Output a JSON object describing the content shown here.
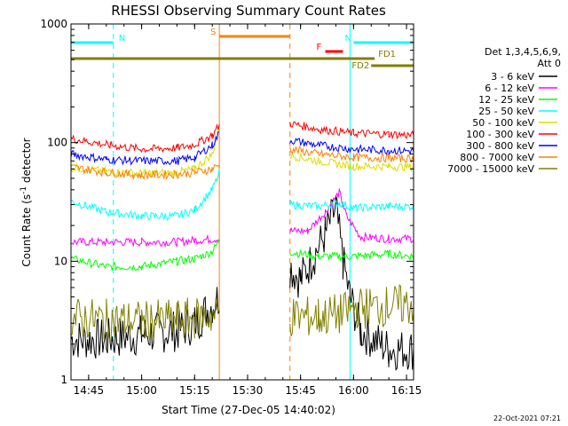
{
  "chart_data": {
    "type": "line",
    "title": "RHESSI Observing Summary Count Rates",
    "xlabel": "Start Time (27-Dec-05 14:40:02)",
    "ylabel_main": "Count Rate (s",
    "ylabel_exponent": "-1",
    "ylabel_end": " detector",
    "y_scale": "log",
    "ylim": [
      1,
      1000
    ],
    "xlim": [
      "14:40",
      "16:17"
    ],
    "x_ticks": [
      "14:45",
      "15:00",
      "15:15",
      "15:30",
      "15:45",
      "16:00",
      "16:15"
    ],
    "y_ticks": [
      "1",
      "10",
      "100",
      "1000"
    ],
    "detector_info": [
      "Det 1,3,4,5,6,9,",
      "Att 0"
    ],
    "timestamp": "22-Oct-2021 07:21",
    "legend_position": "right",
    "data_gap": [
      "15:22",
      "15:42"
    ],
    "series": [
      {
        "name": "3 - 6 keV",
        "color": "#000000",
        "points": [
          [
            "14:40",
            2.2
          ],
          [
            "14:50",
            2.2
          ],
          [
            "15:00",
            2.4
          ],
          [
            "15:10",
            2.6
          ],
          [
            "15:15",
            3.0
          ],
          [
            "15:22",
            5.0
          ],
          [
            "15:42",
            9.0
          ],
          [
            "15:45",
            7.0
          ],
          [
            "15:48",
            10.0
          ],
          [
            "15:52",
            17.0
          ],
          [
            "15:55",
            28.0
          ],
          [
            "15:57",
            10.0
          ],
          [
            "15:59",
            5.0
          ],
          [
            "16:02",
            2.6
          ],
          [
            "16:10",
            1.8
          ],
          [
            "16:17",
            1.8
          ]
        ]
      },
      {
        "name": "6 - 12 keV",
        "color": "#ff00ff",
        "points": [
          [
            "14:40",
            14.5
          ],
          [
            "14:50",
            14.5
          ],
          [
            "15:00",
            14.5
          ],
          [
            "15:10",
            14.5
          ],
          [
            "15:15",
            15.0
          ],
          [
            "15:22",
            15.5
          ],
          [
            "15:42",
            18.0
          ],
          [
            "15:47",
            18.0
          ],
          [
            "15:52",
            26.0
          ],
          [
            "15:56",
            38.0
          ],
          [
            "15:58",
            24.0
          ],
          [
            "16:02",
            16.0
          ],
          [
            "16:10",
            15.5
          ],
          [
            "16:17",
            15.5
          ]
        ]
      },
      {
        "name": "12 - 25 keV",
        "color": "#00ff00",
        "points": [
          [
            "14:40",
            10.5
          ],
          [
            "14:50",
            9.0
          ],
          [
            "15:00",
            9.0
          ],
          [
            "15:10",
            10.0
          ],
          [
            "15:15",
            10.5
          ],
          [
            "15:20",
            12.0
          ],
          [
            "15:22",
            15.0
          ],
          [
            "15:42",
            12.0
          ],
          [
            "15:50",
            11.0
          ],
          [
            "16:00",
            11.0
          ],
          [
            "16:10",
            11.5
          ],
          [
            "16:17",
            11.0
          ]
        ]
      },
      {
        "name": "25 - 50 keV",
        "color": "#00ffff",
        "points": [
          [
            "14:40",
            32.0
          ],
          [
            "14:50",
            26.0
          ],
          [
            "15:00",
            24.0
          ],
          [
            "15:10",
            24.0
          ],
          [
            "15:15",
            27.0
          ],
          [
            "15:20",
            40.0
          ],
          [
            "15:22",
            55.0
          ],
          [
            "15:42",
            30.0
          ],
          [
            "15:50",
            29.0
          ],
          [
            "15:56",
            31.0
          ],
          [
            "16:00",
            28.0
          ],
          [
            "16:10",
            29.0
          ],
          [
            "16:17",
            29.0
          ]
        ]
      },
      {
        "name": "50 - 100 keV",
        "color": "#dddd00",
        "points": [
          [
            "14:40",
            62.0
          ],
          [
            "14:50",
            57.0
          ],
          [
            "15:00",
            55.0
          ],
          [
            "15:10",
            56.0
          ],
          [
            "15:15",
            60.0
          ],
          [
            "15:20",
            80.0
          ],
          [
            "15:22",
            130.0
          ],
          [
            "15:42",
            78.0
          ],
          [
            "15:50",
            70.0
          ],
          [
            "16:00",
            63.0
          ],
          [
            "16:10",
            63.0
          ],
          [
            "16:17",
            62.0
          ]
        ]
      },
      {
        "name": "100 - 300 keV",
        "color": "#ff0000",
        "points": [
          [
            "14:40",
            108.0
          ],
          [
            "14:50",
            96.0
          ],
          [
            "15:00",
            88.0
          ],
          [
            "15:10",
            90.0
          ],
          [
            "15:15",
            96.0
          ],
          [
            "15:20",
            115.0
          ],
          [
            "15:22",
            140.0
          ],
          [
            "15:42",
            145.0
          ],
          [
            "15:50",
            130.0
          ],
          [
            "16:00",
            120.0
          ],
          [
            "16:10",
            118.0
          ],
          [
            "16:17",
            115.0
          ]
        ]
      },
      {
        "name": "300 - 800 keV",
        "color": "#0000ff",
        "points": [
          [
            "14:40",
            80.0
          ],
          [
            "14:50",
            72.0
          ],
          [
            "15:00",
            70.0
          ],
          [
            "15:10",
            70.0
          ],
          [
            "15:15",
            75.0
          ],
          [
            "15:20",
            95.0
          ],
          [
            "15:22",
            120.0
          ],
          [
            "15:42",
            105.0
          ],
          [
            "15:50",
            95.0
          ],
          [
            "16:00",
            88.0
          ],
          [
            "16:10",
            86.0
          ],
          [
            "16:17",
            85.0
          ]
        ]
      },
      {
        "name": "800 - 7000 keV",
        "color": "#ff8000",
        "points": [
          [
            "14:40",
            62.0
          ],
          [
            "14:50",
            56.0
          ],
          [
            "15:00",
            53.0
          ],
          [
            "15:10",
            54.0
          ],
          [
            "15:15",
            56.0
          ],
          [
            "15:20",
            60.0
          ],
          [
            "15:22",
            65.0
          ],
          [
            "15:42",
            88.0
          ],
          [
            "15:50",
            80.0
          ],
          [
            "16:00",
            75.0
          ],
          [
            "16:10",
            74.0
          ],
          [
            "16:17",
            73.0
          ]
        ]
      },
      {
        "name": "7000 - 15000 keV",
        "color": "#808000",
        "points": [
          [
            "14:40",
            3.3
          ],
          [
            "14:50",
            3.2
          ],
          [
            "15:00",
            3.1
          ],
          [
            "15:10",
            3.2
          ],
          [
            "15:15",
            3.3
          ],
          [
            "15:22",
            3.6
          ],
          [
            "15:42",
            3.4
          ],
          [
            "15:50",
            3.4
          ],
          [
            "15:57",
            3.6
          ],
          [
            "16:00",
            4.0
          ],
          [
            "16:10",
            4.2
          ],
          [
            "16:17",
            4.3
          ]
        ]
      }
    ],
    "flags": [
      {
        "label": "N",
        "color": "#00ffff",
        "start": "14:40",
        "end": "14:52"
      },
      {
        "label": "N",
        "color": "#00ffff",
        "start": "16:00",
        "end": "16:17"
      },
      {
        "label": "S",
        "color": "#ff8000",
        "start": "15:22",
        "end": "15:42"
      },
      {
        "label": "F",
        "color": "#ff0000",
        "start": "15:52",
        "end": "15:57"
      },
      {
        "label": "FD1",
        "color": "#808000",
        "start": "14:40",
        "end": "16:06"
      },
      {
        "label": "FD2",
        "color": "#808000",
        "start": "16:05",
        "end": "16:17"
      }
    ],
    "time_markers": [
      {
        "time": "14:40",
        "color": "#00ffff",
        "style": "solid"
      },
      {
        "time": "14:52",
        "color": "#00ffff",
        "style": "dashed"
      },
      {
        "time": "15:22",
        "color": "#ff8000",
        "style": "solid"
      },
      {
        "time": "15:42",
        "color": "#ff8000",
        "style": "dashed"
      },
      {
        "time": "15:59",
        "color": "#00ffff",
        "style": "solid"
      },
      {
        "time": "16:17",
        "color": "#00ffff",
        "style": "dashed"
      }
    ]
  }
}
